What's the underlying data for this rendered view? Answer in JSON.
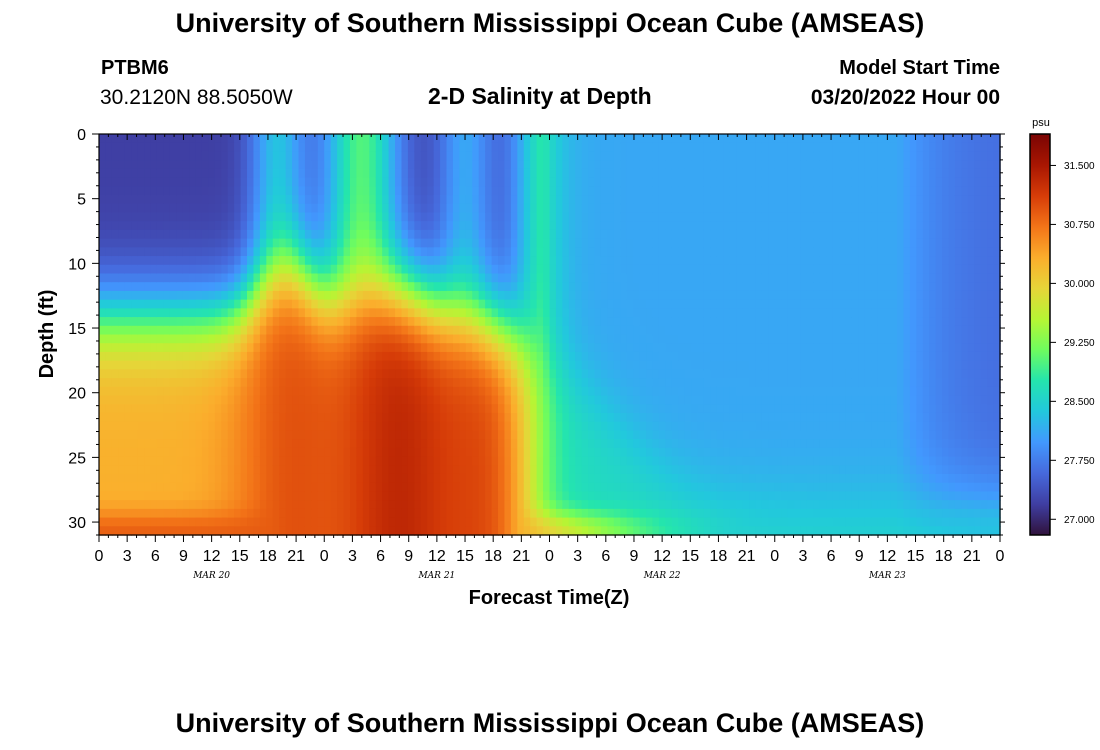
{
  "page": {
    "title": "University of Southern Mississippi Ocean Cube (AMSEAS)",
    "footer_title": "University of Southern Mississippi Ocean Cube (AMSEAS)"
  },
  "header": {
    "station_id": "PTBM6",
    "coordinates": "30.2120N  88.5050W",
    "model_start_label": "Model Start Time",
    "model_start_value": "03/20/2022 Hour 00"
  },
  "chart_data": {
    "type": "heatmap",
    "title": "2-D Salinity at Depth",
    "xlabel": "Forecast Time(Z)",
    "ylabel": "Depth (ft)",
    "x_hours": [
      0,
      96
    ],
    "x_ticks": [
      "0",
      "3",
      "6",
      "9",
      "12",
      "15",
      "18",
      "21",
      "0",
      "3",
      "6",
      "9",
      "12",
      "15",
      "18",
      "21",
      "0",
      "3",
      "6",
      "9",
      "12",
      "15",
      "18",
      "21",
      "0",
      "3",
      "6",
      "9",
      "12",
      "15",
      "18",
      "21",
      "0"
    ],
    "day_labels": [
      {
        "label": "MAR 20",
        "hour": 12
      },
      {
        "label": "MAR 21",
        "hour": 36
      },
      {
        "label": "MAR 22",
        "hour": 60
      },
      {
        "label": "MAR 23",
        "hour": 84
      }
    ],
    "ylim": [
      0,
      31
    ],
    "y_ticks": [
      0,
      5,
      10,
      15,
      20,
      25,
      30
    ],
    "colorbar": {
      "unit": "psu",
      "range": [
        26.8,
        31.9
      ],
      "ticks": [
        "31.500",
        "30.750",
        "30.000",
        "29.250",
        "28.500",
        "27.750",
        "27.000"
      ]
    },
    "colormap": [
      "#30123b",
      "#3f3ea2",
      "#4669dc",
      "#4298fe",
      "#22c8dd",
      "#24e5ad",
      "#6ffc5e",
      "#b6f534",
      "#e6d538",
      "#fbad2c",
      "#f37418",
      "#d63c08",
      "#a81602",
      "#7a0403"
    ],
    "grid": false
  }
}
